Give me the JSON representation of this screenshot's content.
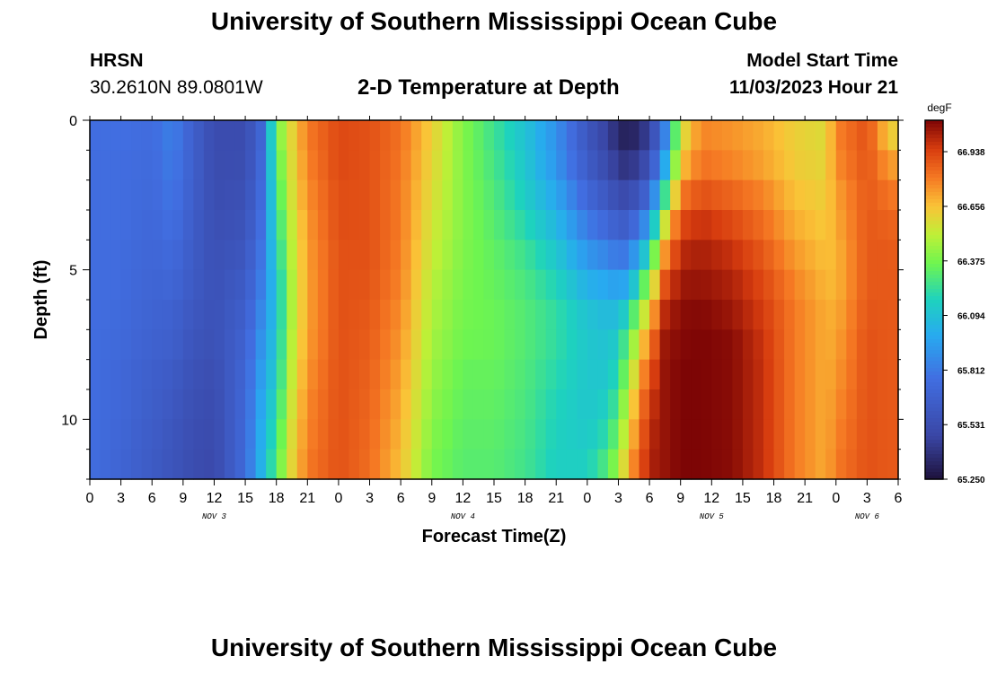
{
  "header": {
    "title": "University of Southern Mississippi Ocean Cube",
    "station_code": "HRSN",
    "station_coords": "30.2610N  89.0801W",
    "chart_title": "2-D Temperature at Depth",
    "model_start_label": "Model Start Time",
    "model_start_value": "11/03/2023 Hour 21"
  },
  "footer": {
    "title": "University of Southern Mississippi Ocean Cube"
  },
  "chart_data": {
    "type": "heatmap",
    "title": "2-D Temperature at Depth",
    "xlabel": "Forecast Time(Z)",
    "ylabel": "Depth (ft)",
    "y_axis": {
      "range": [
        0,
        12
      ],
      "ticks": [
        "0",
        "5",
        "10"
      ],
      "inverted": true
    },
    "x_axis": {
      "tick_labels": [
        "0",
        "3",
        "6",
        "9",
        "12",
        "15",
        "18",
        "21",
        "0",
        "3",
        "6",
        "9",
        "12",
        "15",
        "18",
        "21",
        "0",
        "3",
        "6",
        "9",
        "12",
        "15",
        "18",
        "21",
        "0",
        "3",
        "6"
      ],
      "date_labels": [
        {
          "text": "NOV 3",
          "hour_offset": 12
        },
        {
          "text": "NOV 4",
          "hour_offset": 36
        },
        {
          "text": "NOV 5",
          "hour_offset": 60
        },
        {
          "text": "NOV 6",
          "hour_offset": 75
        }
      ],
      "range_hours": [
        0,
        78
      ]
    },
    "colorbar": {
      "unit": "degF",
      "min": 65.25,
      "max": 67.1,
      "tick_labels": [
        "66.938",
        "66.656",
        "66.375",
        "66.094",
        "65.812",
        "65.531",
        "65.250"
      ]
    },
    "depth_ft": [
      0.3,
      1.3,
      2.3,
      3.3,
      4.3,
      5.3,
      6.3,
      7.3,
      8.3,
      9.3,
      10.3,
      11.3
    ],
    "series": [
      {
        "hours": [
          0,
          65.76,
          65.76,
          65.76,
          65.76,
          65.76,
          65.76,
          65.76,
          65.76,
          65.76,
          65.76,
          65.76,
          65.76
        ]
      },
      {
        "hours": [
          3,
          65.77,
          65.76,
          65.76,
          65.76,
          65.75,
          65.75,
          65.74,
          65.73,
          65.72,
          65.72,
          65.71,
          65.7
        ]
      },
      {
        "hours": [
          6,
          65.75,
          65.74,
          65.73,
          65.72,
          65.71,
          65.7,
          65.69,
          65.68,
          65.66,
          65.65,
          65.64,
          65.63
        ]
      },
      {
        "hours": [
          8,
          65.84,
          65.82,
          65.8,
          65.77,
          65.74,
          65.71,
          65.68,
          65.66,
          65.63,
          65.61,
          65.59,
          65.58
        ]
      },
      {
        "hours": [
          10,
          65.66,
          65.66,
          65.65,
          65.64,
          65.63,
          65.62,
          65.6,
          65.58,
          65.56,
          65.54,
          65.53,
          65.52
        ]
      },
      {
        "hours": [
          12,
          65.52,
          65.52,
          65.53,
          65.54,
          65.55,
          65.56,
          65.56,
          65.55,
          65.53,
          65.52,
          65.51,
          65.5
        ]
      },
      {
        "hours": [
          15,
          65.52,
          65.53,
          65.55,
          65.57,
          65.6,
          65.63,
          65.66,
          65.69,
          65.71,
          65.72,
          65.73,
          65.74
        ]
      },
      {
        "hours": [
          16.5,
          65.7,
          65.72,
          65.74,
          65.76,
          65.79,
          65.82,
          65.86,
          65.9,
          65.94,
          65.97,
          66.0,
          66.02
        ]
      },
      {
        "hours": [
          18,
          66.35,
          66.3,
          66.25,
          66.2,
          66.15,
          66.1,
          66.1,
          66.12,
          66.15,
          66.2,
          66.25,
          66.3
        ]
      },
      {
        "hours": [
          19.5,
          66.6,
          66.58,
          66.56,
          66.52,
          66.5,
          66.48,
          66.48,
          66.5,
          66.52,
          66.55,
          66.58,
          66.6
        ]
      },
      {
        "hours": [
          21,
          66.8,
          66.78,
          66.76,
          66.74,
          66.73,
          66.72,
          66.72,
          66.73,
          66.75,
          66.77,
          66.78,
          66.8
        ]
      },
      {
        "hours": [
          24,
          66.92,
          66.92,
          66.91,
          66.91,
          66.9,
          66.9,
          66.9,
          66.9,
          66.9,
          66.9,
          66.9,
          66.9
        ]
      },
      {
        "hours": [
          27,
          66.9,
          66.9,
          66.9,
          66.9,
          66.9,
          66.89,
          66.88,
          66.87,
          66.86,
          66.85,
          66.84,
          66.83
        ]
      },
      {
        "hours": [
          30,
          66.82,
          66.81,
          66.8,
          66.8,
          66.79,
          66.78,
          66.76,
          66.74,
          66.72,
          66.7,
          66.68,
          66.66
        ]
      },
      {
        "hours": [
          33,
          66.62,
          66.6,
          66.58,
          66.55,
          66.53,
          66.5,
          66.48,
          66.46,
          66.44,
          66.42,
          66.4,
          66.38
        ]
      },
      {
        "hours": [
          36,
          66.4,
          66.4,
          66.4,
          66.4,
          66.39,
          66.38,
          66.37,
          66.36,
          66.34,
          66.33,
          66.32,
          66.31
        ]
      },
      {
        "hours": [
          39,
          66.25,
          66.27,
          66.29,
          66.31,
          66.33,
          66.34,
          66.35,
          66.35,
          66.34,
          66.33,
          66.32,
          66.31
        ]
      },
      {
        "hours": [
          42,
          66.1,
          66.12,
          66.15,
          66.2,
          66.25,
          66.28,
          66.3,
          66.3,
          66.29,
          66.28,
          66.27,
          66.26
        ]
      },
      {
        "hours": [
          45,
          65.9,
          65.92,
          65.98,
          66.05,
          66.12,
          66.18,
          66.22,
          66.22,
          66.2,
          66.18,
          66.17,
          66.16
        ]
      },
      {
        "hours": [
          48,
          65.6,
          65.64,
          65.72,
          65.82,
          65.92,
          66.02,
          66.1,
          66.12,
          66.12,
          66.12,
          66.13,
          66.16
        ]
      },
      {
        "hours": [
          50,
          65.45,
          65.5,
          65.6,
          65.72,
          65.85,
          65.98,
          66.06,
          66.1,
          66.12,
          66.16,
          66.22,
          66.3
        ]
      },
      {
        "hours": [
          51,
          65.35,
          65.42,
          65.52,
          65.65,
          65.8,
          65.95,
          66.08,
          66.16,
          66.22,
          66.3,
          66.38,
          66.46
        ]
      },
      {
        "hours": [
          52,
          65.3,
          65.38,
          65.5,
          65.65,
          65.82,
          66.0,
          66.2,
          66.35,
          66.45,
          66.55,
          66.62,
          66.7
        ]
      },
      {
        "hours": [
          54,
          65.45,
          65.55,
          65.72,
          65.95,
          66.2,
          66.45,
          66.65,
          66.8,
          66.9,
          66.96,
          67.0,
          67.02
        ]
      },
      {
        "hours": [
          55.5,
          65.85,
          66.0,
          66.25,
          66.55,
          66.75,
          66.9,
          67.0,
          67.05,
          67.06,
          67.06,
          67.06,
          67.06
        ]
      },
      {
        "hours": [
          57,
          66.55,
          66.65,
          66.8,
          66.92,
          67.0,
          67.05,
          67.08,
          67.09,
          67.1,
          67.1,
          67.1,
          67.1
        ]
      },
      {
        "hours": [
          59,
          66.78,
          66.82,
          66.9,
          66.98,
          67.03,
          67.06,
          67.09,
          67.1,
          67.1,
          67.1,
          67.1,
          67.1
        ]
      },
      {
        "hours": [
          62,
          66.75,
          66.78,
          66.85,
          66.92,
          66.98,
          67.02,
          67.05,
          67.08,
          67.08,
          67.08,
          67.08,
          67.08
        ]
      },
      {
        "hours": [
          65,
          66.7,
          66.72,
          66.78,
          66.83,
          66.88,
          66.92,
          66.95,
          66.97,
          66.98,
          66.98,
          66.98,
          66.98
        ]
      },
      {
        "hours": [
          68,
          66.62,
          66.63,
          66.66,
          66.7,
          66.74,
          66.78,
          66.8,
          66.8,
          66.8,
          66.8,
          66.8,
          66.8
        ]
      },
      {
        "hours": [
          71,
          66.58,
          66.6,
          66.62,
          66.64,
          66.66,
          66.68,
          66.7,
          66.7,
          66.7,
          66.7,
          66.7,
          66.7
        ]
      },
      {
        "hours": [
          72,
          66.78,
          66.76,
          66.72,
          66.7,
          66.68,
          66.68,
          66.7,
          66.72,
          66.74,
          66.76,
          66.78,
          66.8
        ]
      },
      {
        "hours": [
          75,
          66.9,
          66.89,
          66.88,
          66.88,
          66.88,
          66.88,
          66.89,
          66.9,
          66.9,
          66.9,
          66.9,
          66.9
        ]
      },
      {
        "hours": [
          77,
          66.65,
          66.75,
          66.82,
          66.86,
          66.88,
          66.88,
          66.88,
          66.88,
          66.88,
          66.88,
          66.88,
          66.88
        ]
      },
      {
        "hours": [
          78,
          66.6,
          66.72,
          66.8,
          66.85,
          66.87,
          66.88,
          66.88,
          66.88,
          66.88,
          66.88,
          66.88,
          66.88
        ]
      }
    ]
  }
}
